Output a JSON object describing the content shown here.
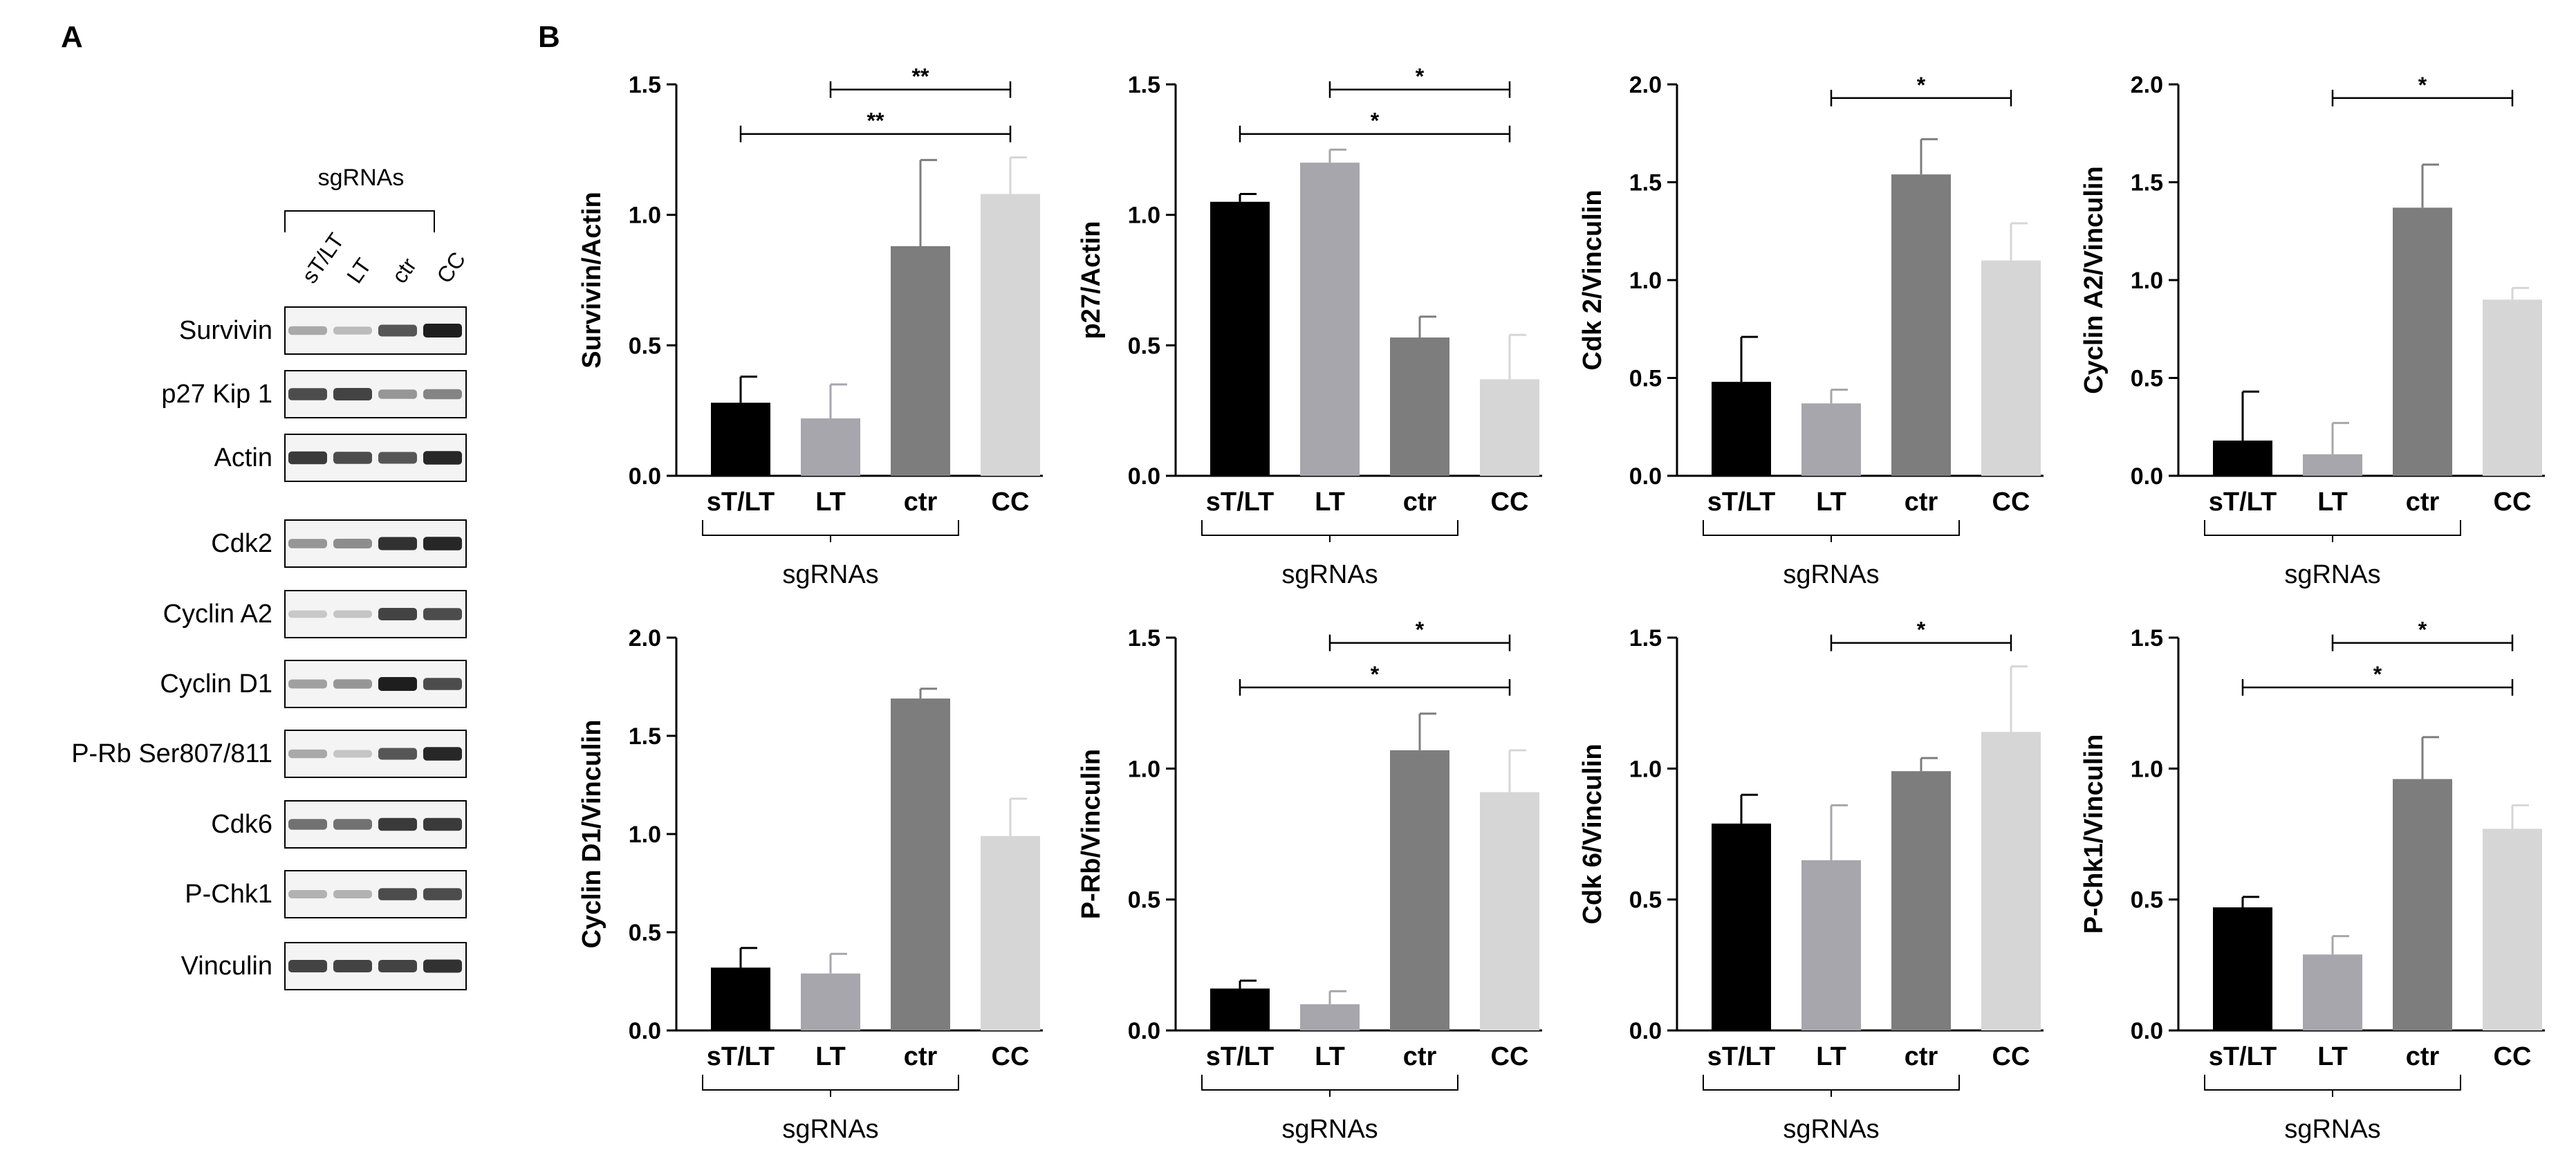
{
  "panel_labels": {
    "a": "A",
    "b": "B"
  },
  "blot": {
    "group_label": "sgRNAs",
    "lanes": [
      "sT/LT",
      "LT",
      "ctr",
      "CC"
    ],
    "rows": [
      {
        "label": "Survivin",
        "intensity": [
          0.25,
          0.15,
          0.7,
          1.0
        ]
      },
      {
        "label": "p27 Kip 1",
        "intensity": [
          0.75,
          0.8,
          0.35,
          0.45
        ]
      },
      {
        "label": "Actin",
        "intensity": [
          0.85,
          0.75,
          0.7,
          0.95
        ]
      },
      {
        "label": "Cdk2",
        "intensity": [
          0.35,
          0.4,
          0.9,
          0.95
        ]
      },
      {
        "label": "Cyclin A2",
        "intensity": [
          0.08,
          0.1,
          0.8,
          0.75
        ]
      },
      {
        "label": "Cyclin D1",
        "intensity": [
          0.3,
          0.35,
          1.0,
          0.75
        ]
      },
      {
        "label": "P-Rb Ser807/811",
        "intensity": [
          0.25,
          0.1,
          0.7,
          0.95
        ]
      },
      {
        "label": "Cdk6",
        "intensity": [
          0.55,
          0.55,
          0.85,
          0.85
        ]
      },
      {
        "label": "P-Chk1",
        "intensity": [
          0.2,
          0.2,
          0.75,
          0.75
        ]
      },
      {
        "label": "Vinculin",
        "intensity": [
          0.8,
          0.8,
          0.8,
          0.9
        ]
      }
    ]
  },
  "colors": [
    "#000000",
    "#a6a6ac",
    "#7d7d7d",
    "#d6d6d6"
  ],
  "chart_data": [
    {
      "type": "bar",
      "ylabel": "Survivin/Actin",
      "ylim": [
        0,
        1.5
      ],
      "yticks": [
        "0.0",
        "0.5",
        "1.0",
        "1.5"
      ],
      "categories": [
        "sT/LT",
        "LT",
        "ctr",
        "CC"
      ],
      "values": [
        0.28,
        0.22,
        0.88,
        1.08
      ],
      "errors": [
        0.1,
        0.13,
        0.33,
        0.14
      ],
      "group_label": "sgRNAs",
      "significance": [
        {
          "from": 1,
          "to": 3,
          "label": "**",
          "level": 1.48
        },
        {
          "from": 0,
          "to": 3,
          "label": "**",
          "level": 1.31
        }
      ]
    },
    {
      "type": "bar",
      "ylabel": "p27/Actin",
      "ylim": [
        0,
        1.5
      ],
      "yticks": [
        "0.0",
        "0.5",
        "1.0",
        "1.5"
      ],
      "categories": [
        "sT/LT",
        "LT",
        "ctr",
        "CC"
      ],
      "values": [
        1.05,
        1.2,
        0.53,
        0.37
      ],
      "errors": [
        0.03,
        0.05,
        0.08,
        0.17
      ],
      "group_label": "sgRNAs",
      "significance": [
        {
          "from": 1,
          "to": 3,
          "label": "*",
          "level": 1.48
        },
        {
          "from": 0,
          "to": 3,
          "label": "*",
          "level": 1.31
        }
      ]
    },
    {
      "type": "bar",
      "ylabel": "Cdk 2/Vinculin",
      "ylim": [
        0,
        2.0
      ],
      "yticks": [
        "0.0",
        "0.5",
        "1.0",
        "1.5",
        "2.0"
      ],
      "categories": [
        "sT/LT",
        "LT",
        "ctr",
        "CC"
      ],
      "values": [
        0.48,
        0.37,
        1.54,
        1.1
      ],
      "errors": [
        0.23,
        0.07,
        0.18,
        0.19
      ],
      "group_label": "sgRNAs",
      "significance": [
        {
          "from": 1,
          "to": 3,
          "label": "*",
          "level": 1.93
        }
      ]
    },
    {
      "type": "bar",
      "ylabel": "Cyclin A2/Vinculin",
      "ylim": [
        0,
        2.0
      ],
      "yticks": [
        "0.0",
        "0.5",
        "1.0",
        "1.5",
        "2.0"
      ],
      "categories": [
        "sT/LT",
        "LT",
        "ctr",
        "CC"
      ],
      "values": [
        0.18,
        0.11,
        1.37,
        0.9
      ],
      "errors": [
        0.25,
        0.16,
        0.22,
        0.06
      ],
      "group_label": "sgRNAs",
      "significance": [
        {
          "from": 1,
          "to": 3,
          "label": "*",
          "level": 1.93
        }
      ]
    },
    {
      "type": "bar",
      "ylabel": "Cyclin D1/Vinculin",
      "ylim": [
        0,
        2.0
      ],
      "yticks": [
        "0.0",
        "0.5",
        "1.0",
        "1.5",
        "2.0"
      ],
      "categories": [
        "sT/LT",
        "LT",
        "ctr",
        "CC"
      ],
      "values": [
        0.32,
        0.29,
        1.69,
        0.99
      ],
      "errors": [
        0.1,
        0.1,
        0.05,
        0.19
      ],
      "group_label": "sgRNAs",
      "significance": []
    },
    {
      "type": "bar",
      "ylabel": "P-Rb/Vinculin",
      "ylim": [
        0,
        1.5
      ],
      "yticks": [
        "0.0",
        "0.5",
        "1.0",
        "1.5"
      ],
      "categories": [
        "sT/LT",
        "LT",
        "ctr",
        "CC"
      ],
      "values": [
        0.16,
        0.1,
        1.07,
        0.91
      ],
      "errors": [
        0.03,
        0.05,
        0.14,
        0.16
      ],
      "group_label": "sgRNAs",
      "significance": [
        {
          "from": 1,
          "to": 3,
          "label": "*",
          "level": 1.48
        },
        {
          "from": 0,
          "to": 3,
          "label": "*",
          "level": 1.31
        }
      ]
    },
    {
      "type": "bar",
      "ylabel": "Cdk 6/Vinculin",
      "ylim": [
        0,
        1.5
      ],
      "yticks": [
        "0.0",
        "0.5",
        "1.0",
        "1.5"
      ],
      "categories": [
        "sT/LT",
        "LT",
        "ctr",
        "CC"
      ],
      "values": [
        0.79,
        0.65,
        0.99,
        1.14
      ],
      "errors": [
        0.11,
        0.21,
        0.05,
        0.25
      ],
      "group_label": "sgRNAs",
      "significance": [
        {
          "from": 1,
          "to": 3,
          "label": "*",
          "level": 1.48
        }
      ]
    },
    {
      "type": "bar",
      "ylabel": "P-Chk1/Vinculin",
      "ylim": [
        0,
        1.5
      ],
      "yticks": [
        "0.0",
        "0.5",
        "1.0",
        "1.5"
      ],
      "categories": [
        "sT/LT",
        "LT",
        "ctr",
        "CC"
      ],
      "values": [
        0.47,
        0.29,
        0.96,
        0.77
      ],
      "errors": [
        0.04,
        0.07,
        0.16,
        0.09
      ],
      "group_label": "sgRNAs",
      "significance": [
        {
          "from": 1,
          "to": 3,
          "label": "*",
          "level": 1.48
        },
        {
          "from": 0,
          "to": 3,
          "label": "*",
          "level": 1.31
        }
      ]
    }
  ]
}
